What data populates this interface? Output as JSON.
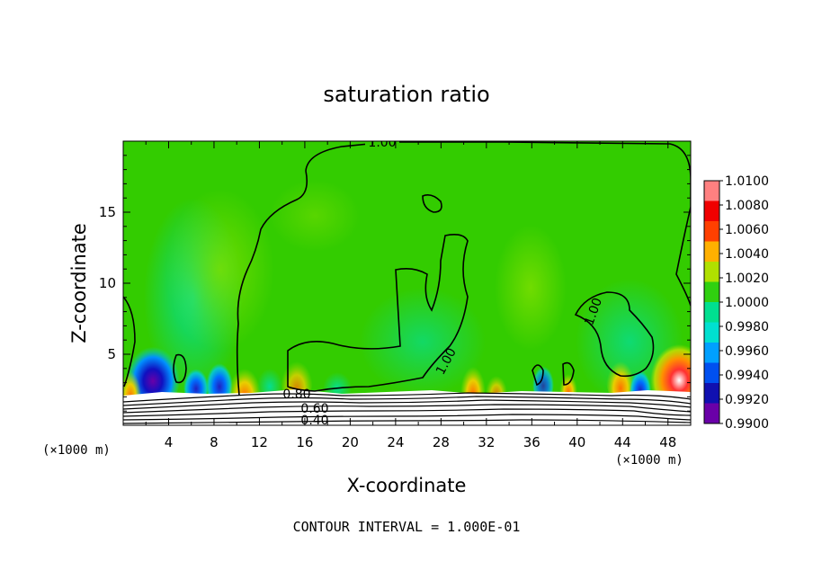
{
  "chart_data": {
    "type": "heatmap",
    "title": "saturation ratio",
    "xlabel": "X-coordinate",
    "ylabel": "Z-coordinate",
    "x_unit": "(×1000 m)",
    "xlim": [
      0,
      50
    ],
    "ylim": [
      0,
      20
    ],
    "x_ticks": [
      4,
      8,
      12,
      16,
      20,
      24,
      28,
      32,
      36,
      40,
      44,
      48
    ],
    "y_ticks": [
      5,
      10,
      15
    ],
    "colorbar": {
      "levels": [
        "0.9900",
        "0.9920",
        "0.9940",
        "0.9960",
        "0.9980",
        "1.0000",
        "1.0020",
        "1.0040",
        "1.0060",
        "1.0080",
        "1.0100"
      ],
      "colors": [
        "#6a00a8",
        "#1010b0",
        "#0050f0",
        "#00a0ff",
        "#00e0d0",
        "#00e090",
        "#30d010",
        "#b0e000",
        "#ffb000",
        "#ff4000",
        "#f00000",
        "#ff8080"
      ]
    },
    "contour_labels": [
      "1.00",
      "1.00",
      "1.00",
      "0.80",
      "0.60",
      "0.40"
    ],
    "contour_interval_text": "CONTOUR INTERVAL = 1.000E-01"
  }
}
